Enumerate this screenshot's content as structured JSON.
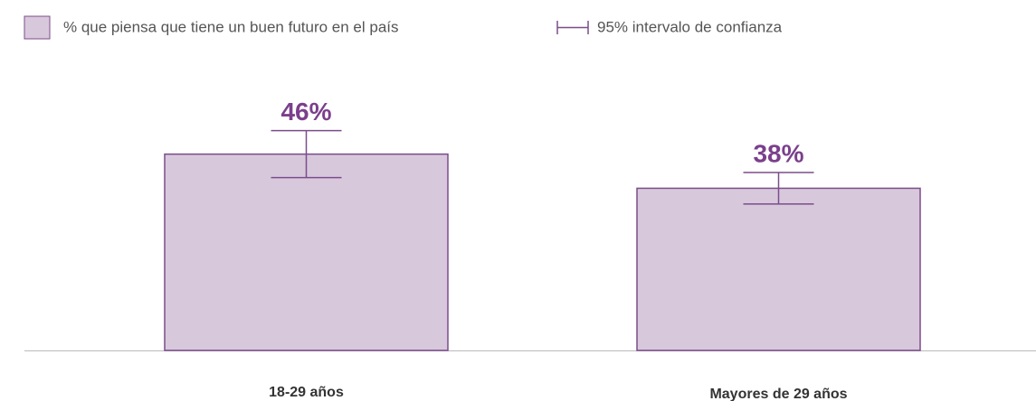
{
  "chart_data": {
    "type": "bar",
    "series": [
      {
        "name": "% que piensa que tiene un buen futuro en el país",
        "color": "#d8c8dc",
        "values": [
          46,
          38
        ],
        "value_labels": [
          "46%",
          "38%"
        ],
        "errors": [
          5.5,
          3.7
        ]
      }
    ],
    "error_label": "95% intervalo de confianza",
    "categories": [
      "18-29 años",
      "Mayores de 29 años"
    ],
    "ylim": [
      0,
      80
    ]
  }
}
